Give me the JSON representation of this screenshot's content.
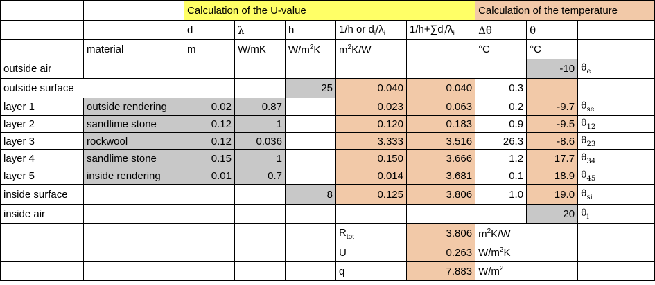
{
  "headers": {
    "uvalue_group": "Calculation of the U-value",
    "temp_group": "Calculation of the temperature",
    "material": "material",
    "d_symbol": "d",
    "d_unit": "m",
    "lambda_symbol": "λ",
    "lambda_unit": "W/mK",
    "h_symbol": "h",
    "h_unit_prefix": "W/m",
    "h_unit_exp": "2",
    "h_unit_suffix": "K",
    "r_symbol_prefix": "1/h or d",
    "r_symbol_i1": "i",
    "r_symbol_mid": "/λ",
    "r_symbol_i2": "i",
    "r_unit_prefix": "m",
    "r_unit_exp": "2",
    "r_unit_suffix": "K/W",
    "cum_symbol_prefix": "1/h+∑d",
    "cum_symbol_i1": "i",
    "cum_symbol_mid": "/λ",
    "cum_symbol_i2": "i",
    "dtheta_symbol": "Δθ",
    "dtheta_unit": "°C",
    "theta_symbol": "θ",
    "theta_unit": "°C"
  },
  "rows": [
    {
      "label": "outside air",
      "material": "",
      "d": "",
      "lambda": "",
      "h": "",
      "r": "",
      "cum": "",
      "dtheta": "",
      "theta": "-10",
      "theta_base": "θ",
      "theta_sub": "e"
    },
    {
      "label": "outside surface",
      "material": "",
      "d": "",
      "lambda": "",
      "h": "25",
      "r": "0.040",
      "cum": "0.040",
      "dtheta": "0.3",
      "theta": "",
      "theta_base": "",
      "theta_sub": ""
    },
    {
      "label": "layer 1",
      "material": "outside rendering",
      "d": "0.02",
      "lambda": "0.87",
      "h": "",
      "r": "0.023",
      "cum": "0.063",
      "dtheta": "0.2",
      "theta": "-9.7",
      "theta_base": "θ",
      "theta_sub": "se"
    },
    {
      "label": "layer 2",
      "material": "sandlime stone",
      "d": "0.12",
      "lambda": "1",
      "h": "",
      "r": "0.120",
      "cum": "0.183",
      "dtheta": "0.9",
      "theta": "-9.5",
      "theta_base": "θ",
      "theta_sub": "12"
    },
    {
      "label": "layer 3",
      "material": "rockwool",
      "d": "0.12",
      "lambda": "0.036",
      "h": "",
      "r": "3.333",
      "cum": "3.516",
      "dtheta": "26.3",
      "theta": "-8.6",
      "theta_base": "θ",
      "theta_sub": "23"
    },
    {
      "label": "layer 4",
      "material": "sandlime stone",
      "d": "0.15",
      "lambda": "1",
      "h": "",
      "r": "0.150",
      "cum": "3.666",
      "dtheta": "1.2",
      "theta": "17.7",
      "theta_base": "θ",
      "theta_sub": "34"
    },
    {
      "label": "layer 5",
      "material": "inside rendering",
      "d": "0.01",
      "lambda": "0.7",
      "h": "",
      "r": "0.014",
      "cum": "3.681",
      "dtheta": "0.1",
      "theta": "18.9",
      "theta_base": "θ",
      "theta_sub": "45"
    },
    {
      "label": "inside surface",
      "material": "",
      "d": "",
      "lambda": "",
      "h": "8",
      "r": "0.125",
      "cum": "3.806",
      "dtheta": "1.0",
      "theta": "19.0",
      "theta_base": "θ",
      "theta_sub": "si"
    },
    {
      "label": "inside air",
      "material": "",
      "d": "",
      "lambda": "",
      "h": "",
      "r": "",
      "cum": "",
      "dtheta": "",
      "theta": "20",
      "theta_base": "θ",
      "theta_sub": "i"
    }
  ],
  "summary": {
    "rtot_base": "R",
    "rtot_sub": "tot",
    "rtot_value": "3.806",
    "rtot_unit_prefix": "m",
    "rtot_unit_exp": "2",
    "rtot_unit_suffix": "K/W",
    "u_label": "U",
    "u_value": "0.263",
    "u_unit_prefix": "W/m",
    "u_unit_exp": "2",
    "u_unit_suffix": "K",
    "q_label": "q",
    "q_value": "7.883",
    "q_unit_prefix": "W/m",
    "q_unit_exp": "2"
  },
  "colors": {
    "yellow": "#ffff66",
    "salmon": "#f2c9a8",
    "gray": "#c8c8c8"
  }
}
